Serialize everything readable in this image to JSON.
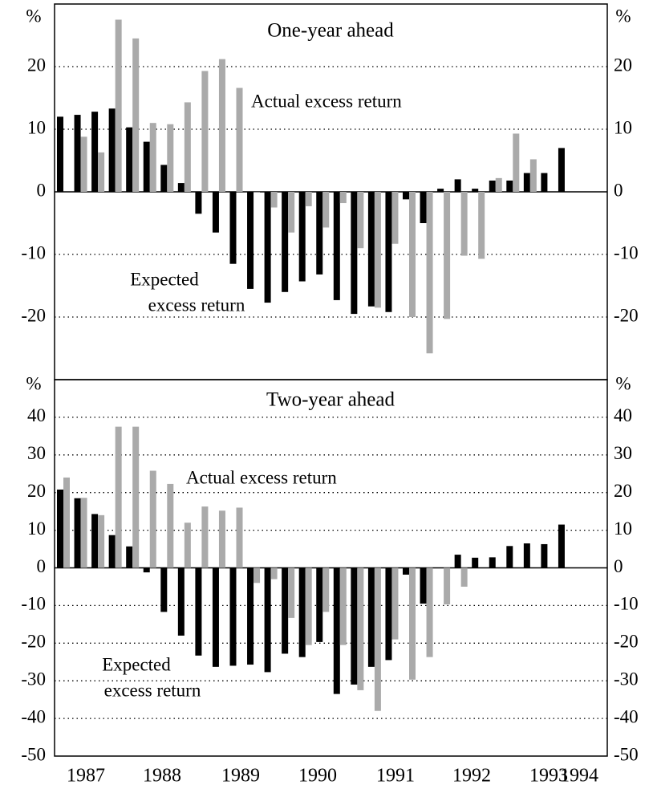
{
  "chart_data": [
    {
      "type": "bar",
      "title": "One-year ahead",
      "y_unit_label": "%",
      "ylim": [
        -30,
        30
      ],
      "yticks": [
        -20,
        -10,
        0,
        10,
        20
      ],
      "grid": true,
      "annotations": [
        "Actual excess return",
        "Expected",
        "excess return"
      ],
      "series": [
        {
          "color": "#000000",
          "values": [
            12,
            12.3,
            12.8,
            13.3,
            10.3,
            8,
            4.3,
            1.4,
            -3.5,
            -6.5,
            -11.5,
            -15.5,
            -17.7,
            -16,
            -14.3,
            -13.2,
            -17.3,
            -19.5,
            -18.3,
            -19.2,
            -1.2,
            -5,
            0.5,
            2,
            0.5,
            1.8,
            1.8,
            3,
            3,
            7
          ]
        },
        {
          "color": "#aaaaaa",
          "values": [
            null,
            8.8,
            6.3,
            27.5,
            24.5,
            11,
            10.8,
            14.3,
            19.3,
            21.2,
            16.6,
            0,
            -2.5,
            -6.5,
            -2.3,
            -5.7,
            -1.8,
            -9,
            -18.5,
            -8.3,
            -20,
            -25.8,
            -20.3,
            -10.2,
            -10.7,
            2.2,
            9.3,
            5.2,
            null,
            null
          ]
        }
      ]
    },
    {
      "type": "bar",
      "title": "Two-year ahead",
      "y_unit_label": "%",
      "ylim": [
        -50,
        50
      ],
      "yticks": [
        -50,
        -40,
        -30,
        -20,
        -10,
        0,
        10,
        20,
        30,
        40
      ],
      "grid": true,
      "annotations": [
        "Actual excess return",
        "Expected",
        "excess return"
      ],
      "x_labels": [
        "1987",
        "1988",
        "1989",
        "1990",
        "1991",
        "1992",
        "1993",
        "1994"
      ],
      "series": [
        {
          "color": "#000000",
          "values": [
            20.8,
            18.5,
            14.3,
            8.7,
            5.7,
            -1.2,
            -11.7,
            -18,
            -23.3,
            -26.3,
            -26,
            -25.7,
            -27.7,
            -22.8,
            -23.7,
            -19.7,
            -33.5,
            -31,
            -26.3,
            -24.5,
            -1.8,
            -9.5,
            null,
            3.5,
            2.7,
            2.8,
            5.8,
            6.5,
            6.3,
            11.5
          ]
        },
        {
          "color": "#aaaaaa",
          "values": [
            24,
            18.6,
            14,
            37.5,
            37.5,
            25.8,
            22.3,
            12,
            16.3,
            15.2,
            16,
            -4,
            -3,
            -13.3,
            -20.5,
            -11.7,
            -20.5,
            -32.5,
            -38,
            -19,
            -29.7,
            -23.7,
            -9.7,
            -5,
            null,
            null,
            null,
            null,
            null,
            null
          ]
        }
      ]
    }
  ]
}
